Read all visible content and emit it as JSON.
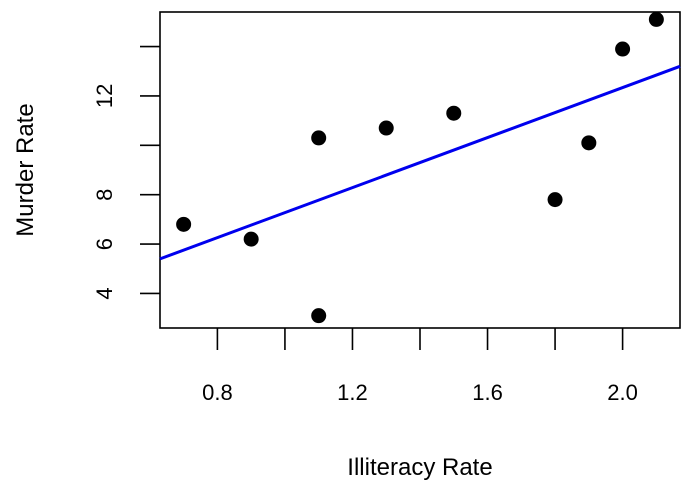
{
  "chart_data": {
    "type": "scatter",
    "title": "",
    "xlabel": "Illiteracy Rate",
    "ylabel": "Murder Rate",
    "xlim": [
      0.63,
      2.17
    ],
    "ylim": [
      2.6,
      15.4
    ],
    "x_ticks": [
      0.8,
      1.0,
      1.2,
      1.4,
      1.6,
      1.8,
      2.0
    ],
    "x_tick_labels": [
      "0.8",
      "",
      "1.2",
      "",
      "1.6",
      "",
      "2.0"
    ],
    "y_ticks": [
      4,
      6,
      8,
      10,
      12,
      14
    ],
    "y_tick_labels": [
      "4",
      "6",
      "8",
      "",
      "12",
      ""
    ],
    "grid": false,
    "points": {
      "x": [
        0.7,
        0.9,
        1.1,
        1.1,
        1.3,
        1.5,
        1.8,
        1.9,
        2.0,
        2.1
      ],
      "y": [
        6.8,
        6.2,
        3.1,
        10.3,
        10.7,
        11.3,
        7.8,
        10.1,
        13.9,
        15.1
      ],
      "color": "#000000"
    },
    "fit_line": {
      "x": [
        0.63,
        2.17
      ],
      "y": [
        5.4,
        13.2
      ],
      "color": "#0000ee"
    }
  }
}
